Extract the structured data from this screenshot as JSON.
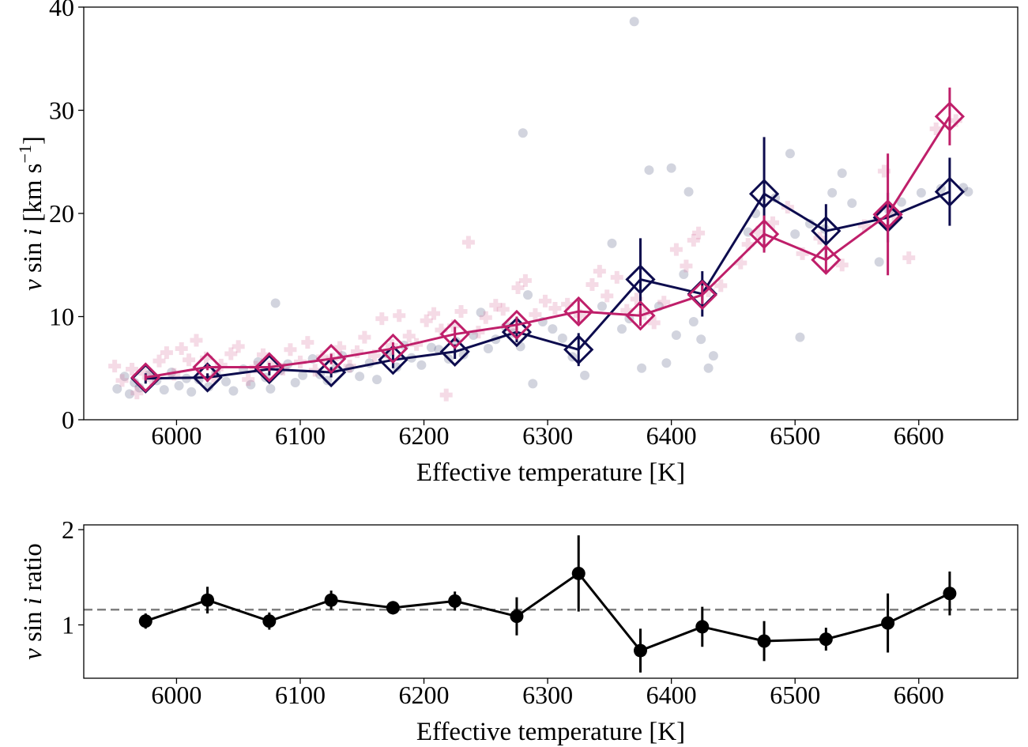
{
  "colors": {
    "series_a": "#0d0c4e",
    "series_b": "#bf1f6a",
    "scatter_a": "#1f2a5a",
    "scatter_b": "#d9709a",
    "ratio": "#000000",
    "reference_line": "#808080"
  },
  "chart_data": [
    {
      "type": "line",
      "xlabel": "Effective temperature [K]",
      "ylabel_prefix": "v",
      "ylabel_mid": " sin ",
      "ylabel_i": "i",
      "ylabel_unit_open": "  [km s",
      "ylabel_unit_exp": "−1",
      "ylabel_unit_close": "]",
      "xlim": [
        5925,
        6680
      ],
      "ylim": [
        0,
        40
      ],
      "xticks": [
        6000,
        6100,
        6200,
        6300,
        6400,
        6500,
        6600
      ],
      "yticks": [
        0,
        10,
        20,
        30,
        40
      ],
      "series": [
        {
          "x": [
            5975,
            6025,
            6075,
            6125,
            6175,
            6225,
            6275,
            6325,
            6375,
            6425,
            6475,
            6525,
            6575,
            6625
          ],
          "y": [
            4.0,
            4.1,
            4.9,
            4.6,
            5.8,
            6.6,
            8.5,
            6.8,
            13.6,
            12.2,
            21.9,
            18.3,
            19.6,
            22.1
          ],
          "yerr": [
            0.5,
            0.4,
            0.6,
            0.5,
            0.8,
            0.7,
            1.0,
            1.6,
            4.0,
            2.2,
            5.5,
            2.6,
            2.4,
            3.3
          ]
        },
        {
          "x": [
            5975,
            6025,
            6075,
            6125,
            6175,
            6225,
            6275,
            6325,
            6375,
            6425,
            6475,
            6525,
            6575,
            6625
          ],
          "y": [
            4.1,
            5.1,
            5.1,
            5.9,
            6.9,
            8.3,
            9.2,
            10.5,
            10.1,
            12.1,
            18.0,
            15.5,
            19.9,
            29.4
          ],
          "yerr": [
            0.3,
            0.3,
            0.4,
            0.5,
            0.6,
            0.7,
            0.8,
            1.1,
            1.0,
            0.9,
            1.8,
            1.2,
            5.9,
            2.8
          ]
        }
      ],
      "scatter": [
        {
          "marker": "circle",
          "points": [
            [
              5952,
              3.0
            ],
            [
              5958,
              4.2
            ],
            [
              5962,
              2.5
            ],
            [
              5966,
              3.6
            ],
            [
              5970,
              3.1
            ],
            [
              5978,
              4.4
            ],
            [
              5984,
              3.8
            ],
            [
              5990,
              2.9
            ],
            [
              5996,
              4.6
            ],
            [
              6002,
              3.3
            ],
            [
              6008,
              4.0
            ],
            [
              6012,
              2.7
            ],
            [
              6018,
              3.9
            ],
            [
              6026,
              3.2
            ],
            [
              6032,
              4.5
            ],
            [
              6040,
              3.7
            ],
            [
              6046,
              2.8
            ],
            [
              6054,
              4.9
            ],
            [
              6060,
              3.4
            ],
            [
              6066,
              5.6
            ],
            [
              6072,
              4.1
            ],
            [
              6076,
              3.0
            ],
            [
              6080,
              11.3
            ],
            [
              6084,
              4.8
            ],
            [
              6090,
              5.4
            ],
            [
              6096,
              3.6
            ],
            [
              6102,
              4.3
            ],
            [
              6110,
              5.9
            ],
            [
              6116,
              4.4
            ],
            [
              6122,
              3.8
            ],
            [
              6128,
              4.9
            ],
            [
              6134,
              6.2
            ],
            [
              6140,
              5.0
            ],
            [
              6148,
              4.2
            ],
            [
              6156,
              5.5
            ],
            [
              6162,
              3.9
            ],
            [
              6170,
              6.4
            ],
            [
              6178,
              5.1
            ],
            [
              6184,
              7.2
            ],
            [
              6190,
              6.0
            ],
            [
              6198,
              5.3
            ],
            [
              6206,
              7.0
            ],
            [
              6212,
              6.8
            ],
            [
              6220,
              5.9
            ],
            [
              6226,
              7.6
            ],
            [
              6232,
              6.3
            ],
            [
              6240,
              8.2
            ],
            [
              6246,
              10.4
            ],
            [
              6252,
              6.9
            ],
            [
              6258,
              7.8
            ],
            [
              6266,
              9.0
            ],
            [
              6272,
              8.4
            ],
            [
              6278,
              7.1
            ],
            [
              6280,
              27.8
            ],
            [
              6284,
              12.1
            ],
            [
              6288,
              3.5
            ],
            [
              6296,
              9.5
            ],
            [
              6304,
              8.8
            ],
            [
              6312,
              7.9
            ],
            [
              6320,
              6.1
            ],
            [
              6330,
              4.3
            ],
            [
              6344,
              11.0
            ],
            [
              6352,
              17.1
            ],
            [
              6360,
              8.8
            ],
            [
              6366,
              9.8
            ],
            [
              6370,
              38.6
            ],
            [
              6376,
              5.0
            ],
            [
              6382,
              24.2
            ],
            [
              6390,
              11.0
            ],
            [
              6396,
              5.5
            ],
            [
              6400,
              24.4
            ],
            [
              6404,
              8.2
            ],
            [
              6410,
              14.1
            ],
            [
              6414,
              22.1
            ],
            [
              6418,
              9.5
            ],
            [
              6424,
              7.8
            ],
            [
              6430,
              5.0
            ],
            [
              6434,
              6.2
            ],
            [
              6462,
              18.2
            ],
            [
              6468,
              20.0
            ],
            [
              6484,
              21.5
            ],
            [
              6496,
              25.8
            ],
            [
              6500,
              18.0
            ],
            [
              6504,
              8.0
            ],
            [
              6512,
              19.0
            ],
            [
              6524,
              18.5
            ],
            [
              6530,
              22.0
            ],
            [
              6538,
              23.9
            ],
            [
              6546,
              21.0
            ],
            [
              6568,
              15.3
            ],
            [
              6576,
              20.3
            ],
            [
              6586,
              21.1
            ],
            [
              6602,
              22.0
            ],
            [
              6618,
              22.4
            ],
            [
              6636,
              22.5
            ],
            [
              6640,
              22.1
            ]
          ]
        },
        {
          "marker": "plus",
          "points": [
            [
              5950,
              5.2
            ],
            [
              5956,
              3.8
            ],
            [
              5964,
              4.9
            ],
            [
              5968,
              2.6
            ],
            [
              5974,
              4.5
            ],
            [
              5980,
              3.9
            ],
            [
              5986,
              5.7
            ],
            [
              5992,
              6.5
            ],
            [
              5998,
              4.4
            ],
            [
              6004,
              6.9
            ],
            [
              6010,
              5.8
            ],
            [
              6016,
              7.7
            ],
            [
              6024,
              6.0
            ],
            [
              6030,
              4.2
            ],
            [
              6036,
              5.3
            ],
            [
              6044,
              6.4
            ],
            [
              6050,
              7.1
            ],
            [
              6058,
              3.9
            ],
            [
              6064,
              5.1
            ],
            [
              6070,
              6.3
            ],
            [
              6078,
              5.5
            ],
            [
              6086,
              4.9
            ],
            [
              6092,
              6.8
            ],
            [
              6100,
              5.6
            ],
            [
              6106,
              7.5
            ],
            [
              6112,
              4.8
            ],
            [
              6118,
              6.1
            ],
            [
              6126,
              5.9
            ],
            [
              6132,
              7.0
            ],
            [
              6140,
              5.2
            ],
            [
              6146,
              6.6
            ],
            [
              6152,
              8.0
            ],
            [
              6160,
              6.2
            ],
            [
              6166,
              9.8
            ],
            [
              6174,
              7.2
            ],
            [
              6180,
              10.1
            ],
            [
              6188,
              8.1
            ],
            [
              6194,
              7.3
            ],
            [
              6202,
              9.6
            ],
            [
              6208,
              10.3
            ],
            [
              6214,
              8.7
            ],
            [
              6218,
              2.4
            ],
            [
              6224,
              9.1
            ],
            [
              6230,
              10.5
            ],
            [
              6236,
              17.2
            ],
            [
              6244,
              8.5
            ],
            [
              6250,
              9.9
            ],
            [
              6258,
              11.1
            ],
            [
              6264,
              10.7
            ],
            [
              6270,
              8.9
            ],
            [
              6276,
              12.8
            ],
            [
              6282,
              13.5
            ],
            [
              6290,
              10.2
            ],
            [
              6298,
              11.5
            ],
            [
              6306,
              10.8
            ],
            [
              6316,
              11.2
            ],
            [
              6326,
              10.1
            ],
            [
              6336,
              13.1
            ],
            [
              6342,
              14.4
            ],
            [
              6348,
              12.0
            ],
            [
              6356,
              13.8
            ],
            [
              6364,
              10.6
            ],
            [
              6372,
              11.7
            ],
            [
              6378,
              10.3
            ],
            [
              6386,
              9.4
            ],
            [
              6394,
              11.4
            ],
            [
              6404,
              16.5
            ],
            [
              6412,
              14.9
            ],
            [
              6418,
              17.4
            ],
            [
              6422,
              18.1
            ],
            [
              6430,
              12.5
            ],
            [
              6440,
              13.0
            ],
            [
              6456,
              15.2
            ],
            [
              6462,
              17.0
            ],
            [
              6470,
              18.2
            ],
            [
              6482,
              19.1
            ],
            [
              6494,
              20.6
            ],
            [
              6506,
              16.1
            ],
            [
              6520,
              17.6
            ],
            [
              6538,
              15.0
            ],
            [
              6556,
              18.8
            ],
            [
              6572,
              24.1
            ],
            [
              6580,
              19.8
            ],
            [
              6592,
              15.7
            ],
            [
              6614,
              28.2
            ],
            [
              6630,
              29.0
            ]
          ]
        }
      ]
    },
    {
      "type": "line",
      "xlabel": "Effective temperature [K]",
      "ylabel_prefix": "v",
      "ylabel_mid": " sin ",
      "ylabel_i": "i",
      "ylabel_suffix": " ratio",
      "xlim": [
        5925,
        6680
      ],
      "ylim": [
        0.44,
        2.05
      ],
      "xticks": [
        6000,
        6100,
        6200,
        6300,
        6400,
        6500,
        6600
      ],
      "yticks": [
        1,
        2
      ],
      "reference_y": 1.16,
      "series": [
        {
          "x": [
            5975,
            6025,
            6075,
            6125,
            6175,
            6225,
            6275,
            6325,
            6375,
            6425,
            6475,
            6525,
            6575,
            6625
          ],
          "y": [
            1.04,
            1.26,
            1.04,
            1.26,
            1.18,
            1.25,
            1.09,
            1.54,
            0.73,
            0.98,
            0.83,
            0.85,
            1.02,
            1.33
          ],
          "yerr": [
            0.08,
            0.14,
            0.09,
            0.1,
            0.07,
            0.1,
            0.2,
            0.4,
            0.23,
            0.21,
            0.21,
            0.12,
            0.31,
            0.23
          ]
        }
      ]
    }
  ]
}
